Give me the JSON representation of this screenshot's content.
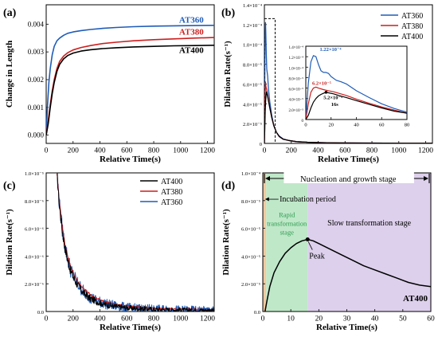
{
  "chart_data": [
    {
      "panel": "(a)",
      "type": "line",
      "xlabel": "Relative Time(s)",
      "ylabel": "Change in Length",
      "xlim": [
        0,
        1250
      ],
      "ylim": [
        -0.0003,
        0.0047
      ],
      "xticks": [
        0,
        200,
        400,
        600,
        800,
        1000,
        1200
      ],
      "yticks": [
        0.0,
        0.001,
        0.002,
        0.003,
        0.004
      ],
      "ytick_labels": [
        "0.000",
        "0.001",
        "0.002",
        "0.003",
        "0.004"
      ],
      "grid": false,
      "series": [
        {
          "name": "AT360",
          "color": "#1f5cb8",
          "x": [
            0,
            10,
            20,
            30,
            45,
            60,
            80,
            100,
            130,
            160,
            200,
            260,
            330,
            420,
            520,
            650,
            800,
            950,
            1100,
            1250
          ],
          "y": [
            0.0,
            0.0011,
            0.0019,
            0.0024,
            0.0029,
            0.0032,
            0.0034,
            0.0035,
            0.0036,
            0.00367,
            0.00372,
            0.00377,
            0.00381,
            0.00385,
            0.00388,
            0.00391,
            0.00393,
            0.00394,
            0.00395,
            0.00396
          ]
        },
        {
          "name": "AT380",
          "color": "#cc1f1f",
          "x": [
            0,
            15,
            30,
            45,
            60,
            80,
            100,
            130,
            160,
            200,
            260,
            330,
            420,
            520,
            650,
            800,
            950,
            1100,
            1250
          ],
          "y": [
            0.0,
            0.0005,
            0.0011,
            0.0016,
            0.002,
            0.0024,
            0.00266,
            0.00285,
            0.00297,
            0.00307,
            0.00316,
            0.00323,
            0.0033,
            0.00335,
            0.0034,
            0.00344,
            0.00347,
            0.0035,
            0.00352
          ]
        },
        {
          "name": "AT400",
          "color": "#000000",
          "x": [
            0,
            15,
            30,
            45,
            60,
            80,
            100,
            130,
            160,
            200,
            260,
            330,
            420,
            520,
            650,
            800,
            950,
            1100,
            1250
          ],
          "y": [
            0.0,
            0.0004,
            0.001,
            0.0015,
            0.0019,
            0.0023,
            0.00255,
            0.00275,
            0.00287,
            0.00296,
            0.00303,
            0.00308,
            0.00312,
            0.00315,
            0.00318,
            0.0032,
            0.00322,
            0.00323,
            0.00324
          ]
        }
      ],
      "labels": [
        {
          "text": "AT360",
          "color": "#1f5cb8",
          "x": 1080,
          "y": 0.00405
        },
        {
          "text": "AT380",
          "color": "#cc1f1f",
          "x": 1080,
          "y": 0.00362
        },
        {
          "text": "AT400",
          "color": "#000000",
          "x": 1080,
          "y": 0.00296
        }
      ]
    },
    {
      "panel": "(b)",
      "type": "line",
      "xlabel": "Relative Time(s)",
      "ylabel": "Dilation Rate(s⁻¹)",
      "xlim": [
        0,
        1250
      ],
      "ylim": [
        0,
        0.00014
      ],
      "xticks": [
        0,
        200,
        400,
        600,
        800,
        1000,
        1200
      ],
      "yticks": [
        0,
        2e-05,
        4e-05,
        6e-05,
        8e-05,
        0.0001,
        0.00012,
        0.00014
      ],
      "ytick_labels": [
        "0",
        "2.0×10⁻⁵",
        "4.0×10⁻⁵",
        "6.0×10⁻⁵",
        "8.0×10⁻⁵",
        "1.0×10⁻⁴",
        "1.2×10⁻⁴",
        "1.4×10⁻⁴"
      ],
      "legend": [
        "AT360",
        "AT380",
        "AT400"
      ],
      "legend_position": "top-right",
      "series": [
        {
          "name": "AT360",
          "color": "#1f5cb8",
          "x": [
            0,
            5,
            8,
            10,
            14,
            18,
            24,
            30,
            40,
            55,
            70,
            90,
            110,
            140,
            180,
            240,
            320,
            420,
            560,
            700,
            900,
            1100,
            1250
          ],
          "y": [
            0,
            0.0001,
            0.000122,
            0.000115,
            9e-05,
            7.5e-05,
            6.8e-05,
            5.5e-05,
            4.2e-05,
            2.8e-05,
            1.8e-05,
            1.1e-05,
            7.5e-06,
            4.5e-06,
            3e-06,
            1.8e-06,
            1.2e-06,
            8e-07,
            5e-07,
            4e-07,
            3e-07,
            2e-07,
            2e-07
          ]
        },
        {
          "name": "AT380",
          "color": "#cc1f1f",
          "x": [
            0,
            5,
            8,
            12,
            16,
            20,
            24,
            30,
            40,
            55,
            70,
            90,
            110,
            140,
            180,
            240,
            320,
            420,
            560,
            700,
            900,
            1100,
            1250
          ],
          "y": [
            0,
            4.5e-05,
            6.2e-05,
            5.7e-05,
            5.5e-05,
            5.2e-05,
            4.9e-05,
            4.4e-05,
            3.6e-05,
            2.6e-05,
            1.8e-05,
            1.1e-05,
            7e-06,
            4.3e-06,
            3e-06,
            1.8e-06,
            1.2e-06,
            8e-07,
            5e-07,
            4e-07,
            3e-07,
            2e-07,
            2e-07
          ]
        },
        {
          "name": "AT400",
          "color": "#000000",
          "x": [
            0,
            3,
            6,
            9,
            12,
            16,
            20,
            25,
            30,
            40,
            55,
            70,
            90,
            110,
            140,
            180,
            240,
            320,
            420,
            560,
            700,
            900,
            1100,
            1250
          ],
          "y": [
            0,
            1.5e-05,
            3.2e-05,
            4.2e-05,
            4.8e-05,
            5.2e-05,
            5e-05,
            4.7e-05,
            4.3e-05,
            3.6e-05,
            2.6e-05,
            1.8e-05,
            1.1e-05,
            7e-06,
            4.2e-06,
            3e-06,
            1.8e-06,
            1.2e-06,
            8e-07,
            5e-07,
            4e-07,
            3e-07,
            2e-07,
            2e-07
          ]
        }
      ],
      "zoom_box": {
        "x": [
          0,
          80
        ],
        "y": [
          0,
          0.000126
        ]
      },
      "inset": {
        "xlim": [
          0,
          80
        ],
        "ylim": [
          0,
          0.00014
        ],
        "xticks": [
          0,
          20,
          40,
          60,
          80
        ],
        "yticks": [
          0,
          2e-05,
          4e-05,
          6e-05,
          8e-05,
          0.0001,
          0.00012,
          0.00014
        ],
        "ytick_labels": [
          "0",
          "2.0×10⁻⁵",
          "4.0×10⁻⁵",
          "6.0×10⁻⁵",
          "8.0×10⁻⁵",
          "1.0×10⁻⁴",
          "1.2×10⁻⁴",
          "1.4×10⁻⁴"
        ],
        "series": [
          {
            "name": "AT360",
            "color": "#1f5cb8",
            "x": [
              0,
              2,
              4,
              6,
              8,
              10,
              12,
              14,
              16,
              18,
              20,
              24,
              28,
              32,
              40,
              50,
              60,
              70,
              80
            ],
            "y": [
              0,
              7e-05,
              0.00011,
              0.000122,
              0.00012,
              0.000105,
              9.3e-05,
              9e-05,
              9e-05,
              8.8e-05,
              8.2e-05,
              7.5e-05,
              7.2e-05,
              6.8e-05,
              5.5e-05,
              4.2e-05,
              3e-05,
              2.1e-05,
              1.4e-05
            ]
          },
          {
            "name": "AT380",
            "color": "#cc1f1f",
            "x": [
              0,
              2,
              4,
              6,
              8,
              10,
              14,
              18,
              22,
              26,
              32,
              40,
              50,
              60,
              70,
              80
            ],
            "y": [
              0,
              3e-05,
              5.2e-05,
              6e-05,
              6.2e-05,
              6e-05,
              5.7e-05,
              5.5e-05,
              5.3e-05,
              5e-05,
              4.6e-05,
              3.9e-05,
              3.1e-05,
              2.4e-05,
              1.8e-05,
              1.2e-05
            ]
          },
          {
            "name": "AT400",
            "color": "#000000",
            "x": [
              0,
              2,
              4,
              6,
              8,
              10,
              12,
              14,
              16,
              18,
              22,
              26,
              32,
              40,
              50,
              60,
              70,
              80
            ],
            "y": [
              0,
              8e-06,
              2.2e-05,
              3.3e-05,
              4e-05,
              4.5e-05,
              4.8e-05,
              5e-05,
              5.2e-05,
              5.1e-05,
              4.9e-05,
              4.6e-05,
              4.2e-05,
              3.6e-05,
              2.9e-05,
              2.2e-05,
              1.6e-05,
              1.2e-05
            ]
          }
        ],
        "annotations": [
          {
            "text": "1.22×10⁻⁴",
            "color": "#1f5cb8"
          },
          {
            "text": "6.2×10⁻⁵",
            "color": "#cc1f1f"
          },
          {
            "text": "5.2×10⁻⁵",
            "color": "#000000"
          },
          {
            "text": "16s",
            "color": "#000000"
          }
        ]
      }
    },
    {
      "panel": "(c)",
      "type": "line",
      "xlabel": "Relative Time(s)",
      "ylabel": "Dilation Rate(s⁻¹)",
      "xlim": [
        0,
        1250
      ],
      "ylim": [
        0,
        1e-05
      ],
      "xticks": [
        0,
        200,
        400,
        600,
        800,
        1000,
        1200
      ],
      "yticks": [
        0,
        2e-06,
        4e-06,
        6e-06,
        8e-06,
        1e-05
      ],
      "ytick_labels": [
        "0.0",
        "2.0×10⁻⁶",
        "4.0×10⁻⁶",
        "6.0×10⁻⁶",
        "8.0×10⁻⁶",
        "1.0×10⁻⁵"
      ],
      "legend": [
        "AT400",
        "AT380",
        "AT360"
      ],
      "legend_position": "top-right",
      "series": [
        {
          "name": "AT400",
          "color": "#000000",
          "noise": 3.5e-07,
          "x": [
            80,
            90,
            100,
            120,
            140,
            160,
            180,
            200,
            240,
            280,
            320,
            360,
            400,
            450,
            500,
            560,
            620,
            700,
            800,
            900,
            1000,
            1100,
            1250
          ],
          "y": [
            1e-05,
            8.7e-06,
            7.5e-06,
            5.8e-06,
            4.6e-06,
            3.7e-06,
            3e-06,
            2.5e-06,
            1.8e-06,
            1.3e-06,
            1e-06,
            7.8e-07,
            6.2e-07,
            4.8e-07,
            3.8e-07,
            3e-07,
            2.5e-07,
            2e-07,
            1.6e-07,
            1.3e-07,
            1.1e-07,
            1e-07,
            9e-08
          ]
        },
        {
          "name": "AT380",
          "color": "#cc1f1f",
          "noise": 1e-07,
          "x": [
            80,
            90,
            100,
            120,
            140,
            160,
            180,
            200,
            240,
            280,
            320,
            360,
            400,
            450,
            500,
            560,
            620,
            700,
            800,
            900,
            1000,
            1100,
            1250
          ],
          "y": [
            1e-05,
            8.9e-06,
            7.8e-06,
            6.1e-06,
            4.9e-06,
            4e-06,
            3.3e-06,
            2.8e-06,
            2.1e-06,
            1.6e-06,
            1.3e-06,
            1e-06,
            8.5e-07,
            6.8e-07,
            5.5e-07,
            4.5e-07,
            3.8e-07,
            3e-07,
            2.4e-07,
            2e-07,
            1.7e-07,
            1.5e-07,
            1.3e-07
          ]
        },
        {
          "name": "AT360",
          "color": "#1f5cb8",
          "noise": 6e-07,
          "x": [
            80,
            90,
            100,
            120,
            140,
            160,
            180,
            200,
            240,
            280,
            320,
            360,
            400,
            450,
            500,
            560,
            620,
            700,
            800,
            900,
            1000,
            1100,
            1250
          ],
          "y": [
            1e-05,
            8.8e-06,
            7.6e-06,
            5.9e-06,
            4.7e-06,
            3.8e-06,
            3.1e-06,
            2.6e-06,
            1.9e-06,
            1.4e-06,
            1.1e-06,
            8.5e-07,
            6.8e-07,
            5.3e-07,
            4.3e-07,
            3.4e-07,
            2.8e-07,
            2.3e-07,
            1.9e-07,
            1.6e-07,
            1.4e-07,
            1.2e-07,
            1e-07
          ]
        }
      ]
    },
    {
      "panel": "(d)",
      "type": "line",
      "xlabel": "Relative Time(s)",
      "ylabel": "Dilation Rate(s⁻¹)",
      "xlim": [
        0,
        60
      ],
      "ylim": [
        0,
        0.0001
      ],
      "xticks": [
        0,
        10,
        20,
        30,
        40,
        50,
        60
      ],
      "yticks": [
        0,
        2e-05,
        4e-05,
        6e-05,
        8e-05,
        0.0001
      ],
      "ytick_labels": [
        "0.0",
        "2.0×10⁻⁵",
        "4.0×10⁻⁵",
        "6.0×10⁻⁵",
        "8.0×10⁻⁵",
        "1.0×10⁻⁴"
      ],
      "regions": [
        {
          "x": [
            0,
            1.2
          ],
          "color": "#f2c9a0"
        },
        {
          "x": [
            1.2,
            16
          ],
          "color": "#bfe8c9",
          "label": [
            "Rapid",
            "transformation",
            "stage"
          ],
          "label_color": "#2e9b4e"
        },
        {
          "x": [
            16,
            60
          ],
          "color": "#ddd0ec",
          "label": [
            "Slow transformation stage"
          ],
          "label_color": "#000000"
        }
      ],
      "series": [
        {
          "name": "AT400",
          "color": "#000000",
          "x": [
            0.8,
            1.5,
            2.5,
            4,
            6,
            8,
            10,
            12,
            14,
            16,
            18,
            20,
            24,
            28,
            32,
            36,
            40,
            44,
            48,
            52,
            56,
            60
          ],
          "y": [
            0,
            8e-06,
            1.8e-05,
            2.8e-05,
            3.6e-05,
            4.2e-05,
            4.6e-05,
            4.9e-05,
            5.1e-05,
            5.2e-05,
            5.1e-05,
            4.9e-05,
            4.5e-05,
            4.1e-05,
            3.7e-05,
            3.3e-05,
            3e-05,
            2.7e-05,
            2.4e-05,
            2.1e-05,
            1.9e-05,
            1.8e-05
          ]
        }
      ],
      "peak": {
        "x": 16,
        "y": 5.2e-05,
        "label": "Peak"
      },
      "annotations": [
        {
          "text": "Nucleation and growth stage"
        },
        {
          "text": "Incubation period"
        },
        {
          "text": "AT400"
        }
      ]
    }
  ]
}
